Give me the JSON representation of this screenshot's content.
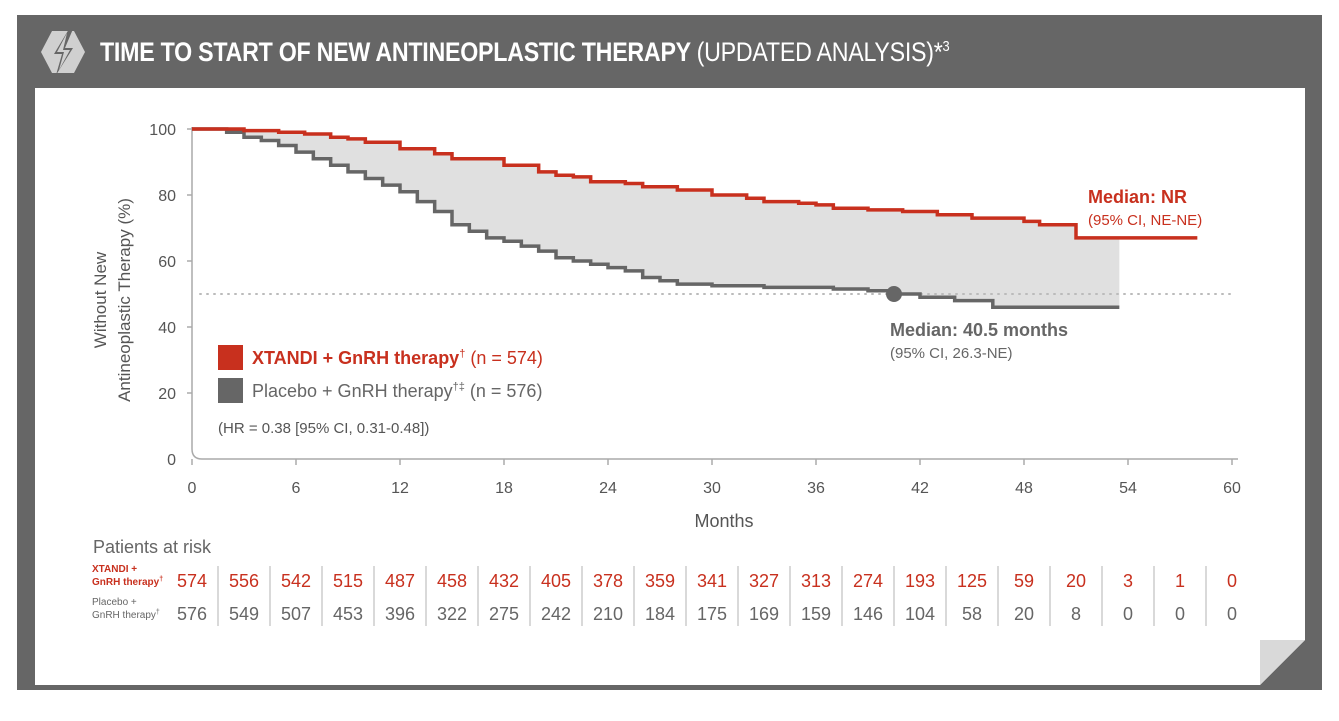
{
  "header": {
    "icon": "lightning-hexagon-icon",
    "title_bold": "TIME TO START OF NEW ANTINEOPLASTIC THERAPY",
    "title_light": "(UPDATED ANALYSIS)*",
    "title_sup": "3"
  },
  "colors": {
    "xtandi": "#c8301e",
    "placebo": "#666666",
    "shade": "#e0e0e0",
    "frame": "#666666"
  },
  "chart_data": {
    "type": "line",
    "subtype": "kaplan-meier",
    "xlabel": "Months",
    "ylabel_line1": "Without New",
    "ylabel_line2": "Antineoplastic Therapy (%)",
    "xlim": [
      0,
      60
    ],
    "ylim": [
      0,
      100
    ],
    "xticks": [
      "0",
      "6",
      "12",
      "18",
      "24",
      "30",
      "36",
      "42",
      "48",
      "54",
      "60"
    ],
    "yticks": [
      "0",
      "20",
      "40",
      "60",
      "80",
      "100"
    ],
    "median_reference": 50,
    "series": [
      {
        "name": "XTANDI + GnRH therapy",
        "sup": "†",
        "n": "(n = 574)",
        "points": [
          [
            0,
            100
          ],
          [
            3,
            99.5
          ],
          [
            5,
            99
          ],
          [
            6.5,
            98.5
          ],
          [
            8,
            97.5
          ],
          [
            9,
            97
          ],
          [
            10,
            96
          ],
          [
            12,
            94
          ],
          [
            14,
            92.5
          ],
          [
            15,
            91
          ],
          [
            18,
            89
          ],
          [
            20,
            87
          ],
          [
            21,
            86
          ],
          [
            22,
            85.5
          ],
          [
            23,
            84
          ],
          [
            25,
            83.5
          ],
          [
            26,
            82.5
          ],
          [
            28,
            81.5
          ],
          [
            30,
            80
          ],
          [
            32,
            79
          ],
          [
            33,
            78
          ],
          [
            35,
            77.5
          ],
          [
            36,
            77
          ],
          [
            37,
            76
          ],
          [
            39,
            75.5
          ],
          [
            41,
            75
          ],
          [
            43,
            74
          ],
          [
            45,
            73
          ],
          [
            48,
            72
          ],
          [
            48.9,
            71
          ],
          [
            51,
            67
          ],
          [
            58,
            67
          ]
        ],
        "median_label": "Median: NR",
        "median_ci": "(95% CI, NE-NE)"
      },
      {
        "name": "Placebo + GnRH therapy",
        "sup": "†‡",
        "n": "(n = 576)",
        "points": [
          [
            0,
            100
          ],
          [
            2,
            99
          ],
          [
            3,
            97.5
          ],
          [
            4,
            96.5
          ],
          [
            5,
            95
          ],
          [
            6,
            93
          ],
          [
            7,
            91
          ],
          [
            8,
            89
          ],
          [
            9,
            87
          ],
          [
            10,
            85
          ],
          [
            11,
            83
          ],
          [
            12,
            81
          ],
          [
            13,
            78
          ],
          [
            14,
            75
          ],
          [
            15,
            71
          ],
          [
            16,
            69
          ],
          [
            17,
            67
          ],
          [
            18,
            66
          ],
          [
            19,
            64.5
          ],
          [
            20,
            63
          ],
          [
            21,
            61
          ],
          [
            22,
            60
          ],
          [
            23,
            59
          ],
          [
            24,
            58
          ],
          [
            25,
            57
          ],
          [
            26,
            55
          ],
          [
            27,
            54
          ],
          [
            28,
            53
          ],
          [
            30,
            52.5
          ],
          [
            33,
            52
          ],
          [
            37,
            51.5
          ],
          [
            39,
            51
          ],
          [
            40.5,
            50
          ],
          [
            42,
            49
          ],
          [
            44,
            48
          ],
          [
            46.2,
            46
          ],
          [
            53.5,
            46
          ]
        ],
        "median_x": 40.5,
        "median_label": "Median: 40.5 months",
        "median_ci": "(95% CI, 26.3-NE)"
      }
    ],
    "hr_text": "(HR = 0.38 [95% CI, 0.31-0.48])",
    "risk_table": {
      "title": "Patients at risk",
      "months": [
        0,
        3,
        6,
        9,
        12,
        15,
        18,
        21,
        24,
        27,
        30,
        33,
        36,
        39,
        42,
        45,
        48,
        51,
        54,
        57,
        60
      ],
      "rows": [
        {
          "label1": "XTANDI +",
          "label2": "GnRH therapy",
          "sup": "†",
          "values": [
            "574",
            "556",
            "542",
            "515",
            "487",
            "458",
            "432",
            "405",
            "378",
            "359",
            "341",
            "327",
            "313",
            "274",
            "193",
            "125",
            "59",
            "20",
            "3",
            "1",
            "0"
          ]
        },
        {
          "label1": "Placebo +",
          "label2": "GnRH therapy",
          "sup": "†",
          "values": [
            "576",
            "549",
            "507",
            "453",
            "396",
            "322",
            "275",
            "242",
            "210",
            "184",
            "175",
            "169",
            "159",
            "146",
            "104",
            "58",
            "20",
            "8",
            "0",
            "0",
            "0"
          ]
        }
      ]
    }
  }
}
